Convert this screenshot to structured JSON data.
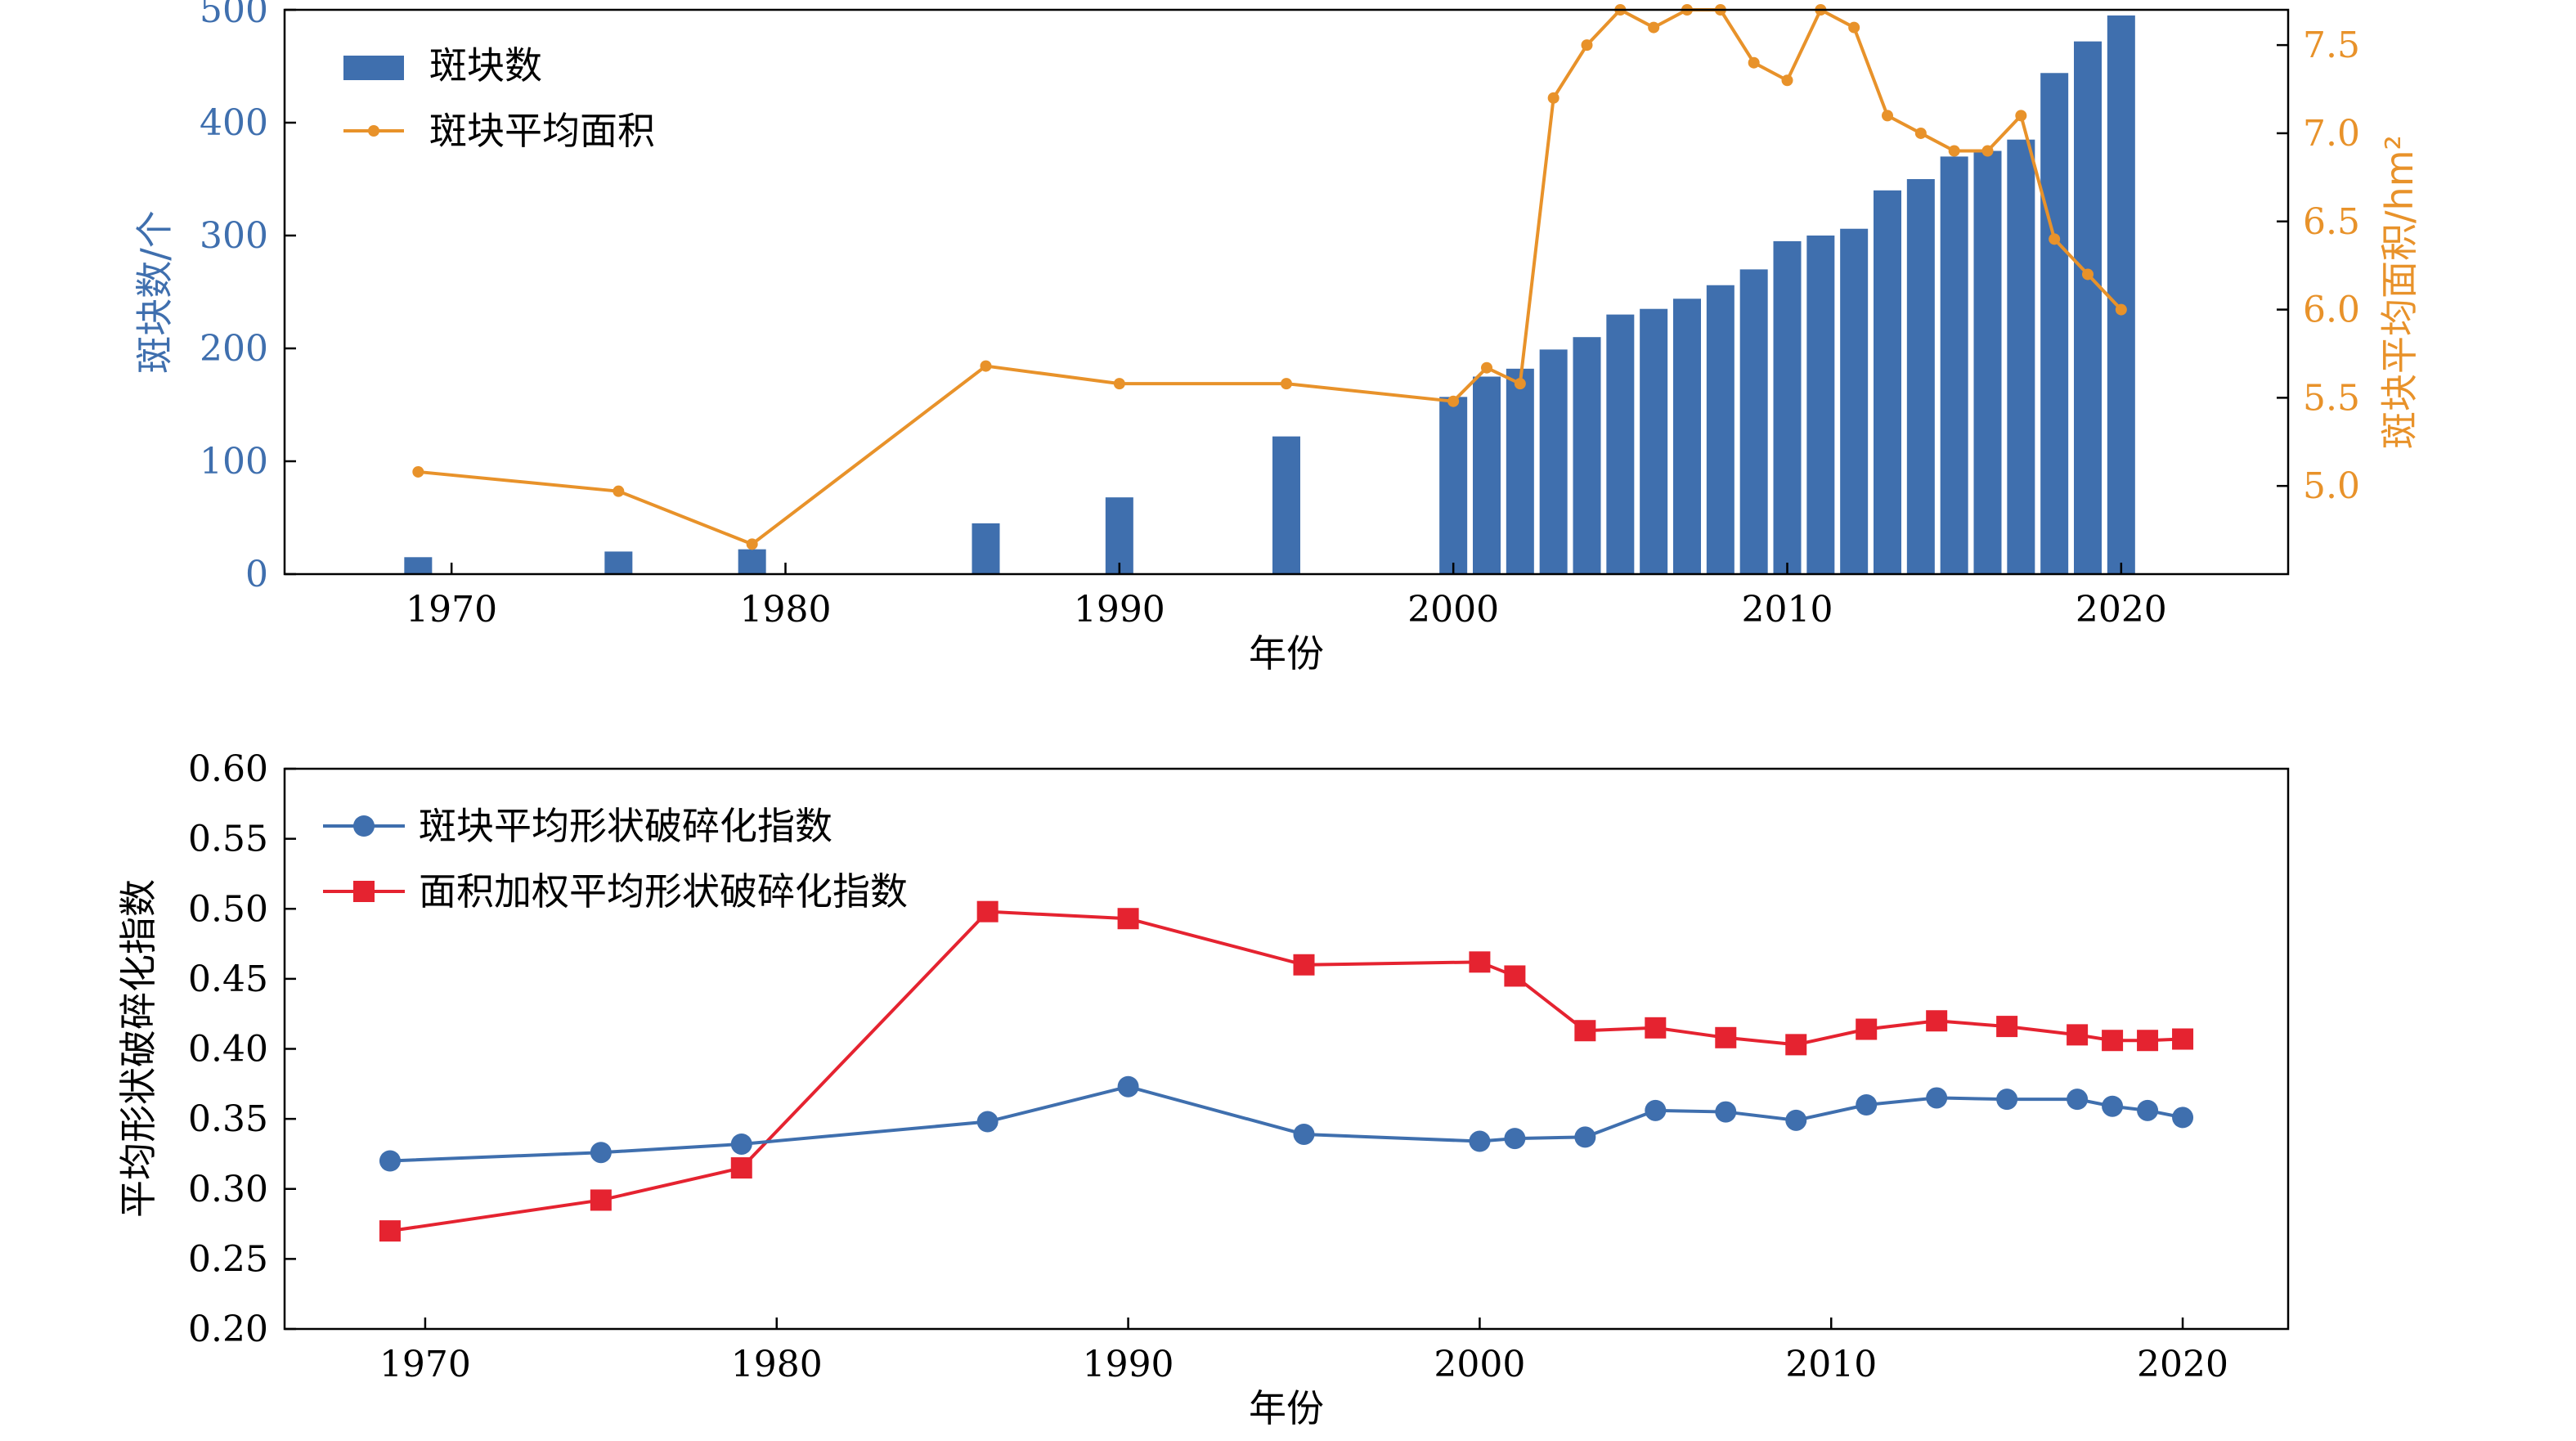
{
  "colors": {
    "bar_blue": "#3F6FAE",
    "line_orange": "#E8922A",
    "line_blue": "#3F6FAE",
    "line_red": "#E52330",
    "axis_left_text": "#3F6FAE",
    "axis_right_text": "#E8922A"
  },
  "chart_data": [
    {
      "type": "bar",
      "secondary_type": "line",
      "title": "",
      "xlabel": "年份",
      "ylabel": "斑块数/个",
      "y2label": "斑块平均面积/hm²",
      "xlim": [
        1965,
        2025
      ],
      "ylim": [
        0,
        500
      ],
      "y2lim": [
        4.5,
        7.7
      ],
      "xticks": [
        1970,
        1980,
        1990,
        2000,
        2010,
        2020
      ],
      "yticks": [
        0,
        100,
        200,
        300,
        400,
        500
      ],
      "y2ticks": [
        5.0,
        5.5,
        6.0,
        6.5,
        7.0,
        7.5
      ],
      "grid": false,
      "legend_position": "top-left",
      "x": [
        1969,
        1975,
        1979,
        1986,
        1990,
        1995,
        2000,
        2001,
        2002,
        2003,
        2004,
        2005,
        2006,
        2007,
        2008,
        2009,
        2010,
        2011,
        2012,
        2013,
        2014,
        2015,
        2016,
        2017,
        2018,
        2019,
        2020
      ],
      "series": [
        {
          "name": "斑块数",
          "kind": "bar",
          "axis": "left",
          "values": [
            15,
            20,
            22,
            45,
            68,
            122,
            157,
            175,
            182,
            199,
            210,
            230,
            235,
            244,
            256,
            270,
            295,
            300,
            306,
            340,
            350,
            370,
            375,
            385,
            444,
            472,
            495
          ]
        },
        {
          "name": "斑块平均面积",
          "kind": "line",
          "axis": "right",
          "values": [
            5.08,
            4.97,
            4.67,
            5.68,
            5.58,
            5.58,
            5.48,
            5.67,
            5.58,
            7.2,
            7.5,
            7.7,
            7.6,
            7.7,
            7.7,
            7.4,
            7.3,
            7.7,
            7.6,
            7.1,
            7.0,
            6.9,
            6.9,
            7.1,
            6.4,
            6.2,
            6.0
          ]
        }
      ]
    },
    {
      "type": "line",
      "title": "",
      "xlabel": "年份",
      "ylabel": "平均形状破碎化指数",
      "xlim": [
        1966,
        2023
      ],
      "ylim": [
        0.2,
        0.6
      ],
      "xticks": [
        1970,
        1980,
        1990,
        2000,
        2010,
        2020
      ],
      "yticks": [
        "0.20",
        "0.25",
        "0.30",
        "0.35",
        "0.40",
        "0.45",
        "0.50",
        "0.55",
        "0.60"
      ],
      "grid": false,
      "legend_position": "top-left",
      "series": [
        {
          "name": "斑块平均形状破碎化指数",
          "marker": "circle",
          "x": [
            1969,
            1975,
            1979,
            1986,
            1990,
            1995,
            2000,
            2001,
            2003,
            2005,
            2007,
            2009,
            2011,
            2013,
            2015,
            2017,
            2018,
            2019,
            2020
          ],
          "values": [
            0.32,
            0.326,
            0.332,
            0.348,
            0.373,
            0.339,
            0.334,
            0.336,
            0.337,
            0.356,
            0.355,
            0.349,
            0.36,
            0.365,
            0.364,
            0.364,
            0.359,
            0.356,
            0.351
          ]
        },
        {
          "name": "面积加权平均形状破碎化指数",
          "marker": "square",
          "x": [
            1969,
            1975,
            1979,
            1986,
            1990,
            1995,
            2000,
            2001,
            2003,
            2005,
            2007,
            2009,
            2011,
            2013,
            2015,
            2017,
            2018,
            2019,
            2020
          ],
          "values": [
            0.27,
            0.292,
            0.315,
            0.498,
            0.493,
            0.46,
            0.462,
            0.452,
            0.413,
            0.415,
            0.408,
            0.403,
            0.414,
            0.42,
            0.416,
            0.41,
            0.406,
            0.406,
            0.407
          ]
        }
      ]
    }
  ]
}
